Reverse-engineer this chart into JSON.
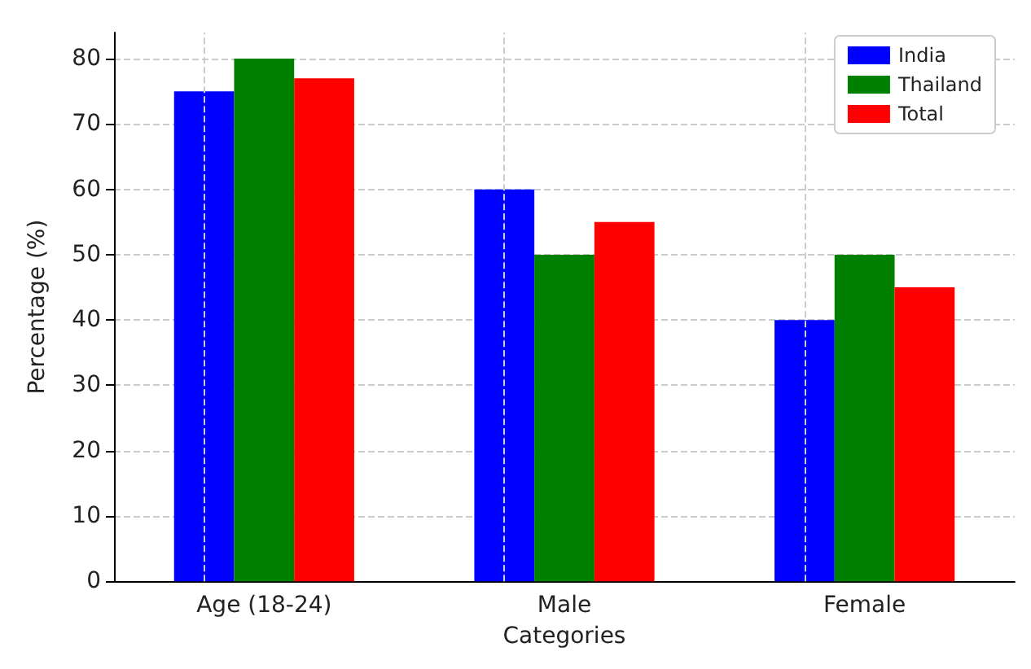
{
  "chart_data": {
    "type": "bar",
    "xlabel": "Categories",
    "ylabel": "Percentage (%)",
    "categories": [
      "Age (18-24)",
      "Male",
      "Female"
    ],
    "series": [
      {
        "name": "India",
        "color": "#0000ff",
        "values": [
          75,
          60,
          40
        ]
      },
      {
        "name": "Thailand",
        "color": "#008000",
        "values": [
          80,
          50,
          50
        ]
      },
      {
        "name": "Total",
        "color": "#ff0000",
        "values": [
          77,
          55,
          45
        ]
      }
    ],
    "ylim": [
      0,
      84
    ],
    "yticks": [
      0,
      10,
      20,
      30,
      40,
      50,
      60,
      70,
      80
    ],
    "grid": true,
    "legend": "top right"
  }
}
